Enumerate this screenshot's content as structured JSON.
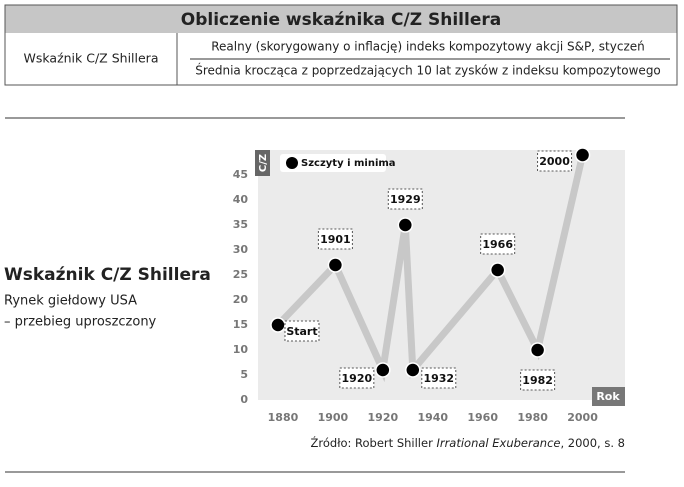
{
  "header": {
    "title": "Obliczenie wskaźnika C/Z Shillera",
    "label": "Wskaźnik C/Z Shillera",
    "numerator": "Realny (skorygowany o inflację) indeks kompozytowy akcji S&P, styczeń",
    "denominator": "Średnia krocząca z poprzedzających 10 lat zysków z indeksu kompozytowego"
  },
  "side": {
    "title": "Wskaźnik C/Z Shillera",
    "lines": [
      "Rynek giełdowy USA",
      "– przebieg uproszczony"
    ]
  },
  "source": {
    "prefix": "Źródło: Robert Shiller ",
    "book": "Irrational Exuberance",
    "suffix": ", 2000, s. 8"
  },
  "chart_data": {
    "type": "line",
    "y_label": "C/Z",
    "x_label": "Rok",
    "legend": "Szczyty i minima",
    "x": [
      1878,
      1901,
      1920,
      1929,
      1932,
      1966,
      1982,
      2000
    ],
    "values": [
      15,
      27,
      6,
      35,
      6,
      26,
      10,
      49
    ],
    "point_labels": [
      "Start",
      "1901",
      "1920",
      "1929",
      "1932",
      "1966",
      "1982",
      "2000"
    ],
    "color": "#c8c8c8",
    "marker_color": "#000000",
    "xlim": [
      1870,
      2017
    ],
    "ylim": [
      0,
      50
    ],
    "xticks": [
      1880,
      1900,
      1920,
      1940,
      1960,
      1980,
      2000
    ],
    "yticks": [
      0,
      5,
      10,
      15,
      20,
      25,
      30,
      35,
      40,
      45
    ],
    "grid": false
  }
}
